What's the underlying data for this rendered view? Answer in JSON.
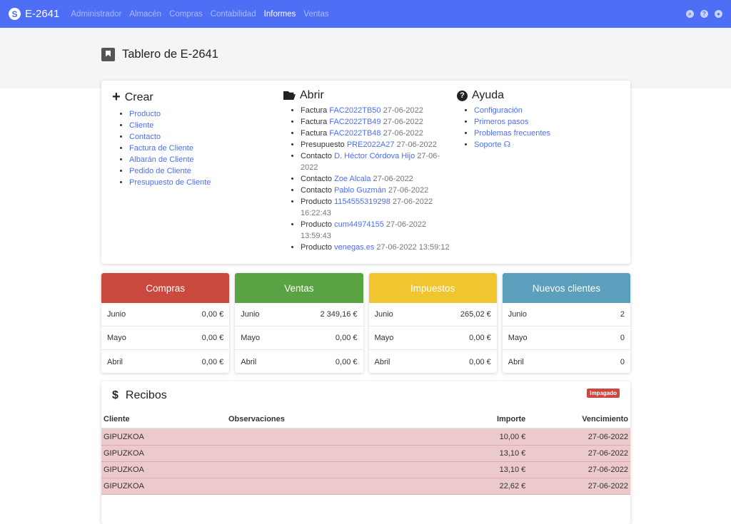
{
  "nav": {
    "brand": "E-2641",
    "items": [
      {
        "label": "Administrador"
      },
      {
        "label": "Almacén"
      },
      {
        "label": "Compras"
      },
      {
        "label": "Contabilidad"
      },
      {
        "label": "Informes",
        "active": true
      },
      {
        "label": "Ventas"
      }
    ],
    "icons": [
      "search-icon",
      "help-icon",
      "user-icon"
    ]
  },
  "page": {
    "title": "Tablero de E-2641"
  },
  "crear": {
    "title": "Crear",
    "items": [
      "Producto",
      "Cliente",
      "Contacto",
      "Factura de Cliente",
      "Albarán de Cliente",
      "Pedido de Cliente",
      "Presupuesto de Cliente"
    ]
  },
  "abrir": {
    "title": "Abrir",
    "items": [
      {
        "type": "Factura",
        "link": "FAC2022TB50",
        "date": "27-06-2022"
      },
      {
        "type": "Factura",
        "link": "FAC2022TB49",
        "date": "27-06-2022"
      },
      {
        "type": "Factura",
        "link": "FAC2022TB48",
        "date": "27-06-2022"
      },
      {
        "type": "Presupuesto",
        "link": "PRE2022A27",
        "date": "27-06-2022"
      },
      {
        "type": "Contacto",
        "link": "D. Héctor Córdova Hijo",
        "date": "27-06-2022"
      },
      {
        "type": "Contacto",
        "link": "Zoe Alcala",
        "date": "27-06-2022"
      },
      {
        "type": "Contacto",
        "link": "Pablo Guzmán",
        "date": "27-06-2022"
      },
      {
        "type": "Producto",
        "link": "1154555319298",
        "date": "27-06-2022 16:22:43"
      },
      {
        "type": "Producto",
        "link": "cum44974155",
        "date": "27-06-2022 13:59:43"
      },
      {
        "type": "Producto",
        "link": "venegas.es",
        "date": "27-06-2022 13:59:12"
      }
    ]
  },
  "ayuda": {
    "title": "Ayuda",
    "items": [
      "Configuración",
      "Primeros pasos",
      "Problemas frecuentes",
      "Soporte"
    ]
  },
  "stats": [
    {
      "title": "Compras",
      "color": "#c9493e",
      "rows": [
        [
          "Junio",
          "0,00 €"
        ],
        [
          "Mayo",
          "0,00 €"
        ],
        [
          "Abril",
          "0,00 €"
        ]
      ]
    },
    {
      "title": "Ventas",
      "color": "#5aa344",
      "rows": [
        [
          "Junio",
          "2 349,16 €"
        ],
        [
          "Mayo",
          "0,00 €"
        ],
        [
          "Abril",
          "0,00 €"
        ]
      ]
    },
    {
      "title": "Impuestos",
      "color": "#f0c530",
      "rows": [
        [
          "Junio",
          "265,02 €"
        ],
        [
          "Mayo",
          "0,00 €"
        ],
        [
          "Abril",
          "0,00 €"
        ]
      ]
    },
    {
      "title": "Nuevos clientes",
      "color": "#5b9fbd",
      "rows": [
        [
          "Junio",
          "2"
        ],
        [
          "Mayo",
          "0"
        ],
        [
          "Abril",
          "0"
        ]
      ]
    }
  ],
  "recibos": {
    "title": "Recibos",
    "badge": "Impagado",
    "columns": [
      "Cliente",
      "Observaciones",
      "Importe",
      "Vencimiento"
    ],
    "rows": [
      [
        "GIPUZKOA",
        "",
        "10,00 €",
        "27-06-2022"
      ],
      [
        "GIPUZKOA",
        "",
        "13,10 €",
        "27-06-2022"
      ],
      [
        "GIPUZKOA",
        "",
        "13,10 €",
        "27-06-2022"
      ],
      [
        "GIPUZKOA",
        "",
        "22,62 €",
        "27-06-2022"
      ]
    ]
  }
}
